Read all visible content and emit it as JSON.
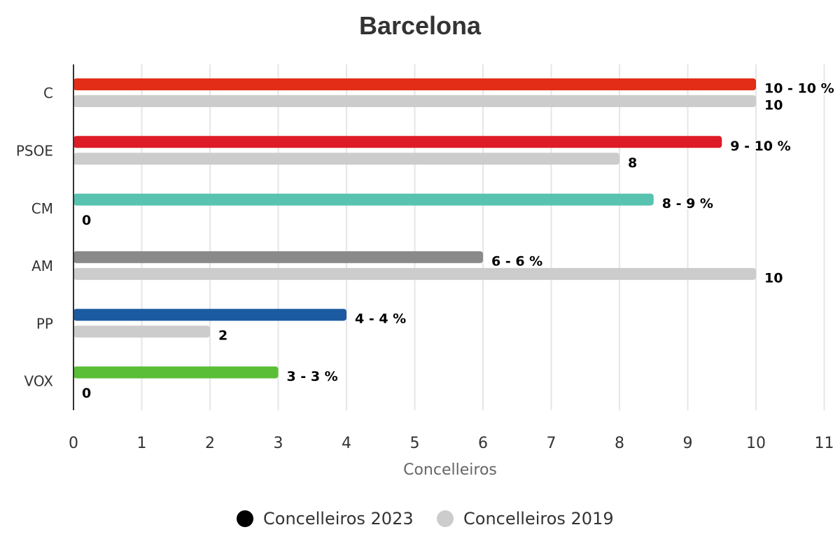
{
  "chart_data": {
    "type": "bar",
    "orientation": "horizontal",
    "title": "Barcelona",
    "xlabel": "Concelleiros",
    "ylabel": "",
    "xlim": [
      0,
      11
    ],
    "x_ticks": [
      "0",
      "1",
      "2",
      "3",
      "4",
      "5",
      "6",
      "7",
      "8",
      "9",
      "10",
      "11"
    ],
    "grid": true,
    "legend_position": "bottom-center",
    "categories": [
      "C",
      "PSOE",
      "CM",
      "AM",
      "PP",
      "VOX"
    ],
    "series": [
      {
        "name": "Concelleiros 2023",
        "legend_color": "#000000",
        "values": [
          10,
          9.5,
          8.5,
          6,
          4,
          3
        ],
        "colors": [
          "#e32d17",
          "#dd1c27",
          "#57c3b0",
          "#8a8a8a",
          "#1c5ba2",
          "#5abe36"
        ],
        "data_labels": [
          "10 - 10 %",
          "9 - 10 %",
          "8 - 9 %",
          "6 - 6 %",
          "4 - 4 %",
          "3 - 3 %"
        ]
      },
      {
        "name": "Concelleiros 2019",
        "legend_color": "#cccccc",
        "values": [
          10,
          8,
          0,
          10,
          2,
          0
        ],
        "colors": [
          "#cccccc",
          "#cccccc",
          "#cccccc",
          "#cccccc",
          "#cccccc",
          "#cccccc"
        ],
        "data_labels": [
          "10",
          "8",
          "0",
          "10",
          "2",
          "0"
        ]
      }
    ]
  },
  "colors": {
    "grid": "#e6e6e6",
    "axis_line": "#333333"
  }
}
